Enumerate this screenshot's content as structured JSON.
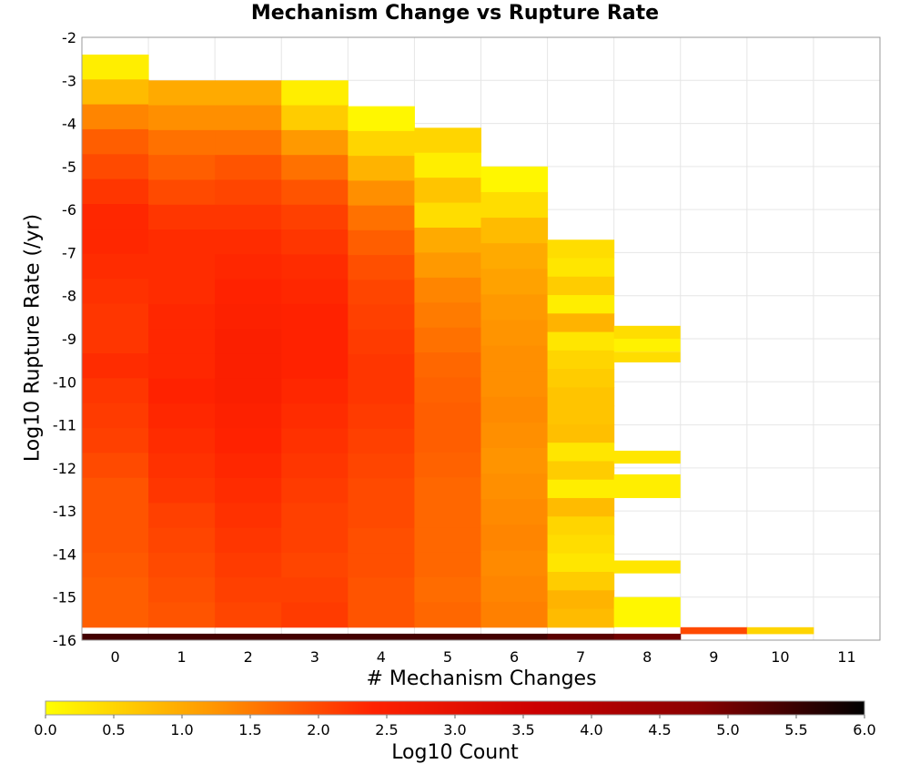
{
  "chart_data": {
    "type": "heatmap",
    "title": "Mechanism Change vs Rupture Rate",
    "xlabel": "# Mechanism Changes",
    "ylabel": "Log10 Rupture Rate (/yr)",
    "colorbar_label": "Log10 Count",
    "x_ticks": [
      "0",
      "1",
      "2",
      "3",
      "4",
      "5",
      "6",
      "7",
      "8",
      "9",
      "10",
      "11"
    ],
    "y_ticks": [
      "-2",
      "-3",
      "-4",
      "-5",
      "-6",
      "-7",
      "-8",
      "-9",
      "-10",
      "-11",
      "-12",
      "-13",
      "-14",
      "-15",
      "-16"
    ],
    "colorbar_ticks": [
      "0.0",
      "0.5",
      "1.0",
      "1.5",
      "2.0",
      "2.5",
      "3.0",
      "3.5",
      "4.0",
      "4.5",
      "5.0",
      "5.5",
      "6.0"
    ],
    "xlim": [
      -0.5,
      11.5
    ],
    "ylim": [
      -16,
      -2
    ],
    "color_range": [
      0,
      6
    ],
    "colormap": [
      "#ffff00",
      "#ff9900",
      "#ff2200",
      "#cc0000",
      "#880000",
      "#000000"
    ],
    "grid": true,
    "columns": [
      {
        "x": 0,
        "y_top": -2.4,
        "y_bottom": -15.7,
        "values": [
          0.2,
          0.8,
          1.4,
          1.8,
          2.0,
          2.2,
          2.35,
          2.35,
          2.3,
          2.25,
          2.2,
          2.2,
          2.3,
          2.2,
          2.15,
          2.1,
          2.0,
          1.9,
          1.9,
          1.9,
          1.85,
          1.8,
          1.8
        ]
      },
      {
        "x": 1,
        "y_top": -3.0,
        "y_bottom": -15.7,
        "values": [
          1.0,
          1.3,
          1.6,
          1.8,
          2.0,
          2.2,
          2.3,
          2.3,
          2.3,
          2.35,
          2.35,
          2.35,
          2.4,
          2.35,
          2.3,
          2.25,
          2.2,
          2.1,
          2.05,
          2.0,
          1.95,
          1.9
        ]
      },
      {
        "x": 2,
        "y_top": -3.0,
        "y_bottom": -15.7,
        "values": [
          1.0,
          1.3,
          1.6,
          1.9,
          2.05,
          2.2,
          2.3,
          2.35,
          2.4,
          2.45,
          2.5,
          2.5,
          2.5,
          2.45,
          2.4,
          2.35,
          2.3,
          2.25,
          2.2,
          2.15,
          2.1,
          2.05
        ]
      },
      {
        "x": 3,
        "y_top": -3.0,
        "y_bottom": -15.7,
        "values": [
          0.2,
          0.6,
          1.2,
          1.6,
          1.9,
          2.1,
          2.2,
          2.3,
          2.35,
          2.4,
          2.4,
          2.4,
          2.35,
          2.3,
          2.25,
          2.2,
          2.15,
          2.1,
          2.1,
          2.05,
          2.1,
          2.15
        ]
      },
      {
        "x": 4,
        "y_top": -3.6,
        "y_bottom": -15.7,
        "values": [
          0.1,
          0.5,
          0.9,
          1.3,
          1.6,
          1.8,
          1.95,
          2.05,
          2.1,
          2.15,
          2.2,
          2.2,
          2.15,
          2.1,
          2.05,
          2.0,
          2.0,
          1.95,
          1.95,
          1.9,
          1.9
        ]
      },
      {
        "x": 5,
        "y_top": -4.1,
        "y_bottom": -15.7,
        "values": [
          0.5,
          0.2,
          0.7,
          0.4,
          1.0,
          1.2,
          1.4,
          1.5,
          1.6,
          1.7,
          1.75,
          1.8,
          1.8,
          1.75,
          1.7,
          1.7,
          1.7,
          1.7,
          1.65,
          1.7
        ]
      },
      {
        "x": 6,
        "y_top": -5.0,
        "y_bottom": -15.7,
        "values": [
          0.1,
          0.4,
          0.8,
          1.0,
          1.1,
          1.2,
          1.25,
          1.3,
          1.3,
          1.35,
          1.3,
          1.25,
          1.3,
          1.35,
          1.4,
          1.35,
          1.4,
          1.45
        ]
      },
      {
        "x": 7,
        "y_top": -6.7,
        "y_bottom": -15.7,
        "values": [
          0.4,
          0.3,
          0.6,
          0.2,
          0.9,
          0.3,
          0.5,
          0.6,
          0.7,
          0.7,
          0.75,
          0.3,
          0.6,
          0.2,
          0.8,
          0.5,
          0.4,
          0.3,
          0.6,
          0.9,
          0.8
        ]
      },
      {
        "x": 8,
        "y_top": -8.7,
        "y_bottom": -15.7,
        "segments": [
          [
            -8.7,
            -9.0,
            0.4
          ],
          [
            -9.0,
            -9.3,
            0.15
          ],
          [
            -9.3,
            -9.55,
            0.4
          ],
          [
            -11.6,
            -11.9,
            0.3
          ],
          [
            -12.15,
            -12.7,
            0.2
          ],
          [
            -14.15,
            -14.45,
            0.3
          ],
          [
            -15.0,
            -15.7,
            0.1
          ]
        ]
      },
      {
        "x": 9,
        "y_top": -15.7,
        "y_bottom": -15.85,
        "values": [
          2.0
        ]
      },
      {
        "x": 10,
        "y_top": -15.7,
        "y_bottom": -15.85,
        "values": [
          0.5
        ]
      }
    ],
    "zero_change_row": {
      "y_top": -15.85,
      "y_bottom": -16.0,
      "values": [
        5.4,
        5.4,
        5.4,
        5.4,
        5.4,
        5.4,
        5.4,
        5.2,
        5.0
      ]
    }
  }
}
